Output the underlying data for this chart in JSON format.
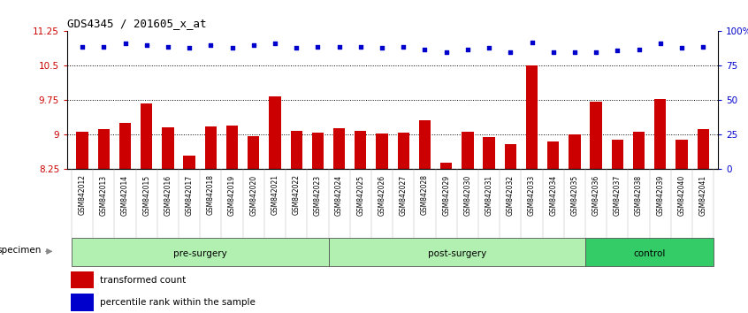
{
  "title": "GDS4345 / 201605_x_at",
  "categories": [
    "GSM842012",
    "GSM842013",
    "GSM842014",
    "GSM842015",
    "GSM842016",
    "GSM842017",
    "GSM842018",
    "GSM842019",
    "GSM842020",
    "GSM842021",
    "GSM842022",
    "GSM842023",
    "GSM842024",
    "GSM842025",
    "GSM842026",
    "GSM842027",
    "GSM842028",
    "GSM842029",
    "GSM842030",
    "GSM842031",
    "GSM842032",
    "GSM842033",
    "GSM842034",
    "GSM842035",
    "GSM842036",
    "GSM842037",
    "GSM842038",
    "GSM842039",
    "GSM842040",
    "GSM842041"
  ],
  "bar_values": [
    9.07,
    9.12,
    9.25,
    9.68,
    9.15,
    8.55,
    9.18,
    9.19,
    8.97,
    9.83,
    9.08,
    9.04,
    9.13,
    9.08,
    9.03,
    9.05,
    9.32,
    8.38,
    9.07,
    8.95,
    8.8,
    10.5,
    8.85,
    9.0,
    9.72,
    8.88,
    9.06,
    9.78,
    8.88,
    9.12
  ],
  "percentile_values": [
    89,
    89,
    91,
    90,
    89,
    88,
    90,
    88,
    90,
    91,
    88,
    89,
    89,
    89,
    88,
    89,
    87,
    85,
    87,
    88,
    85,
    92,
    85,
    85,
    85,
    86,
    87,
    91,
    88,
    89
  ],
  "bar_color": "#cc0000",
  "dot_color": "#0000cc",
  "ylim_left": [
    8.25,
    11.25
  ],
  "ylim_right": [
    0,
    100
  ],
  "yticks_left": [
    8.25,
    9.0,
    9.75,
    10.5,
    11.25
  ],
  "ytick_labels_left": [
    "8.25",
    "9",
    "9.75",
    "10.5",
    "11.25"
  ],
  "yticks_right": [
    0,
    25,
    50,
    75,
    100
  ],
  "ytick_labels_right": [
    "0",
    "25",
    "50",
    "75",
    "100%"
  ],
  "hlines": [
    9.0,
    9.75,
    10.5
  ],
  "groups": [
    {
      "label": "pre-surgery",
      "start": 0,
      "end": 12,
      "color": "#b2f0b2"
    },
    {
      "label": "post-surgery",
      "start": 12,
      "end": 24,
      "color": "#b2f0b2"
    },
    {
      "label": "control",
      "start": 24,
      "end": 30,
      "color": "#33cc66"
    }
  ],
  "legend_bar_label": "transformed count",
  "legend_dot_label": "percentile rank within the sample",
  "specimen_label": "specimen",
  "plot_bg_color": "#ffffff",
  "fig_bg_color": "#ffffff",
  "xtick_bg_color": "#d8d8d8"
}
